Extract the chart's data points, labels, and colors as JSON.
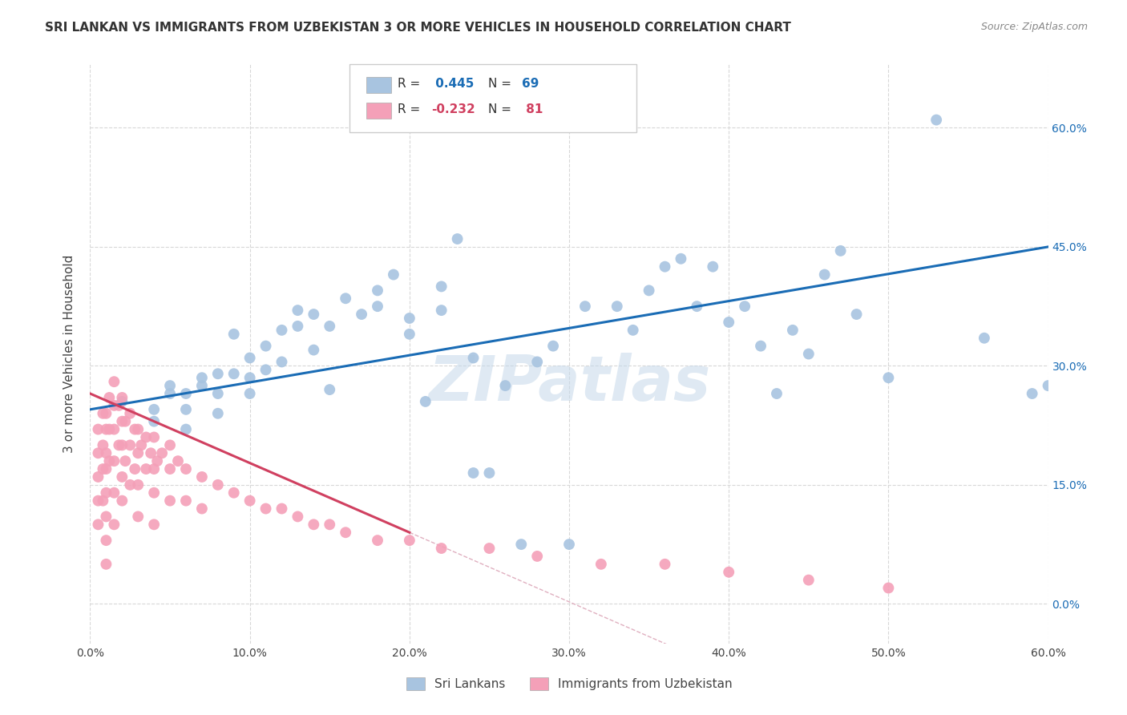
{
  "title": "SRI LANKAN VS IMMIGRANTS FROM UZBEKISTAN 3 OR MORE VEHICLES IN HOUSEHOLD CORRELATION CHART",
  "source": "Source: ZipAtlas.com",
  "ylabel_label": "3 or more Vehicles in Household",
  "xlim": [
    0.0,
    0.6
  ],
  "ylim": [
    -0.05,
    0.68
  ],
  "legend_labels": [
    "Sri Lankans",
    "Immigrants from Uzbekistan"
  ],
  "blue_R": 0.445,
  "blue_N": 69,
  "pink_R": -0.232,
  "pink_N": 81,
  "blue_color": "#a8c4e0",
  "pink_color": "#f4a0b8",
  "blue_line_color": "#1a6cb5",
  "pink_line_color": "#d04060",
  "pink_dash_color": "#e0b0c0",
  "grid_color": "#d8d8d8",
  "background_color": "#ffffff",
  "watermark": "ZIPatlas",
  "ytick_vals": [
    0.0,
    0.15,
    0.3,
    0.45,
    0.6
  ],
  "xtick_vals": [
    0.0,
    0.1,
    0.2,
    0.3,
    0.4,
    0.5,
    0.6
  ],
  "blue_scatter_x": [
    0.02,
    0.04,
    0.05,
    0.05,
    0.06,
    0.06,
    0.07,
    0.07,
    0.08,
    0.08,
    0.08,
    0.09,
    0.09,
    0.1,
    0.1,
    0.1,
    0.11,
    0.11,
    0.12,
    0.12,
    0.13,
    0.13,
    0.14,
    0.14,
    0.15,
    0.15,
    0.16,
    0.17,
    0.18,
    0.18,
    0.19,
    0.2,
    0.2,
    0.21,
    0.22,
    0.22,
    0.23,
    0.24,
    0.24,
    0.25,
    0.26,
    0.27,
    0.28,
    0.29,
    0.3,
    0.31,
    0.33,
    0.34,
    0.35,
    0.36,
    0.37,
    0.38,
    0.39,
    0.4,
    0.41,
    0.42,
    0.43,
    0.44,
    0.45,
    0.46,
    0.47,
    0.48,
    0.5,
    0.53,
    0.56,
    0.59,
    0.6,
    0.04,
    0.06
  ],
  "blue_scatter_y": [
    0.255,
    0.245,
    0.265,
    0.275,
    0.265,
    0.245,
    0.275,
    0.285,
    0.29,
    0.265,
    0.24,
    0.29,
    0.34,
    0.265,
    0.31,
    0.285,
    0.325,
    0.295,
    0.345,
    0.305,
    0.37,
    0.35,
    0.32,
    0.365,
    0.35,
    0.27,
    0.385,
    0.365,
    0.375,
    0.395,
    0.415,
    0.36,
    0.34,
    0.255,
    0.37,
    0.4,
    0.46,
    0.31,
    0.165,
    0.165,
    0.275,
    0.075,
    0.305,
    0.325,
    0.075,
    0.375,
    0.375,
    0.345,
    0.395,
    0.425,
    0.435,
    0.375,
    0.425,
    0.355,
    0.375,
    0.325,
    0.265,
    0.345,
    0.315,
    0.415,
    0.445,
    0.365,
    0.285,
    0.61,
    0.335,
    0.265,
    0.275,
    0.23,
    0.22
  ],
  "pink_scatter_x": [
    0.005,
    0.005,
    0.005,
    0.005,
    0.005,
    0.008,
    0.008,
    0.008,
    0.008,
    0.01,
    0.01,
    0.01,
    0.01,
    0.01,
    0.01,
    0.01,
    0.01,
    0.012,
    0.012,
    0.012,
    0.015,
    0.015,
    0.015,
    0.015,
    0.015,
    0.015,
    0.018,
    0.018,
    0.02,
    0.02,
    0.02,
    0.02,
    0.02,
    0.022,
    0.022,
    0.025,
    0.025,
    0.025,
    0.028,
    0.028,
    0.03,
    0.03,
    0.03,
    0.03,
    0.032,
    0.035,
    0.035,
    0.038,
    0.04,
    0.04,
    0.04,
    0.04,
    0.042,
    0.045,
    0.05,
    0.05,
    0.05,
    0.055,
    0.06,
    0.06,
    0.07,
    0.07,
    0.08,
    0.09,
    0.1,
    0.11,
    0.12,
    0.13,
    0.14,
    0.15,
    0.16,
    0.18,
    0.2,
    0.22,
    0.25,
    0.28,
    0.32,
    0.36,
    0.4,
    0.45,
    0.5
  ],
  "pink_scatter_y": [
    0.22,
    0.19,
    0.16,
    0.13,
    0.1,
    0.24,
    0.2,
    0.17,
    0.13,
    0.24,
    0.22,
    0.19,
    0.17,
    0.14,
    0.11,
    0.08,
    0.05,
    0.26,
    0.22,
    0.18,
    0.28,
    0.25,
    0.22,
    0.18,
    0.14,
    0.1,
    0.25,
    0.2,
    0.26,
    0.23,
    0.2,
    0.16,
    0.13,
    0.23,
    0.18,
    0.24,
    0.2,
    0.15,
    0.22,
    0.17,
    0.22,
    0.19,
    0.15,
    0.11,
    0.2,
    0.21,
    0.17,
    0.19,
    0.21,
    0.17,
    0.14,
    0.1,
    0.18,
    0.19,
    0.2,
    0.17,
    0.13,
    0.18,
    0.17,
    0.13,
    0.16,
    0.12,
    0.15,
    0.14,
    0.13,
    0.12,
    0.12,
    0.11,
    0.1,
    0.1,
    0.09,
    0.08,
    0.08,
    0.07,
    0.07,
    0.06,
    0.05,
    0.05,
    0.04,
    0.03,
    0.02
  ],
  "blue_line_start_y": 0.245,
  "blue_line_end_y": 0.45,
  "pink_line_start_y": 0.265,
  "pink_line_end_x": 0.2,
  "pink_line_end_y": 0.09
}
